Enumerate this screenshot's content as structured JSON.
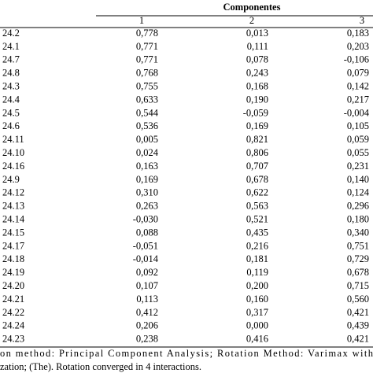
{
  "table": {
    "group_header": "Componentes",
    "columns": [
      "1",
      "2",
      "3"
    ],
    "rows": [
      [
        "24.2",
        "0,778",
        "0,013",
        "0,183"
      ],
      [
        "24.1",
        "0,771",
        "0,111",
        "0,203"
      ],
      [
        "24.7",
        "0,771",
        "0,078",
        "-0,106"
      ],
      [
        "24.8",
        "0,768",
        "0,243",
        "0,079"
      ],
      [
        "24.3",
        "0,755",
        "0,168",
        "0,142"
      ],
      [
        "24.4",
        "0,633",
        "0,190",
        "0,217"
      ],
      [
        "24.5",
        "0,544",
        "-0,059",
        "-0,004"
      ],
      [
        "24.6",
        "0,536",
        "0,169",
        "0,105"
      ],
      [
        "24.11",
        "0,005",
        "0,821",
        "0,059"
      ],
      [
        "24.10",
        "0,024",
        "0,806",
        "0,055"
      ],
      [
        "24.16",
        "0,163",
        "0,707",
        "0,231"
      ],
      [
        "24.9",
        "0,169",
        "0,678",
        "0,140"
      ],
      [
        "24.12",
        "0,310",
        "0,622",
        "0,124"
      ],
      [
        "24.13",
        "0,263",
        "0,563",
        "0,296"
      ],
      [
        "24.14",
        "-0,030",
        "0,521",
        "0,180"
      ],
      [
        "24.15",
        "0,088",
        "0,435",
        "0,340"
      ],
      [
        "24.17",
        "-0,051",
        "0,216",
        "0,751"
      ],
      [
        "24.18",
        "-0,014",
        "0,181",
        "0,729"
      ],
      [
        "24.19",
        "0,092",
        "0,119",
        "0,678"
      ],
      [
        "24.20",
        "0,107",
        "0,200",
        "0,715"
      ],
      [
        "24.21",
        "0,113",
        "0,160",
        "0,560"
      ],
      [
        "24.22",
        "0,412",
        "0,317",
        "0,421"
      ],
      [
        "24.24",
        "0,206",
        "0,000",
        "0,439"
      ],
      [
        "24.23",
        "0,238",
        "0,416",
        "0,421"
      ]
    ]
  },
  "footer": {
    "lines": [
      "on method: Principal Component Analysis; Rotation Method: Varimax with",
      "zation; (The). Rotation converged in 4 interactions."
    ]
  }
}
